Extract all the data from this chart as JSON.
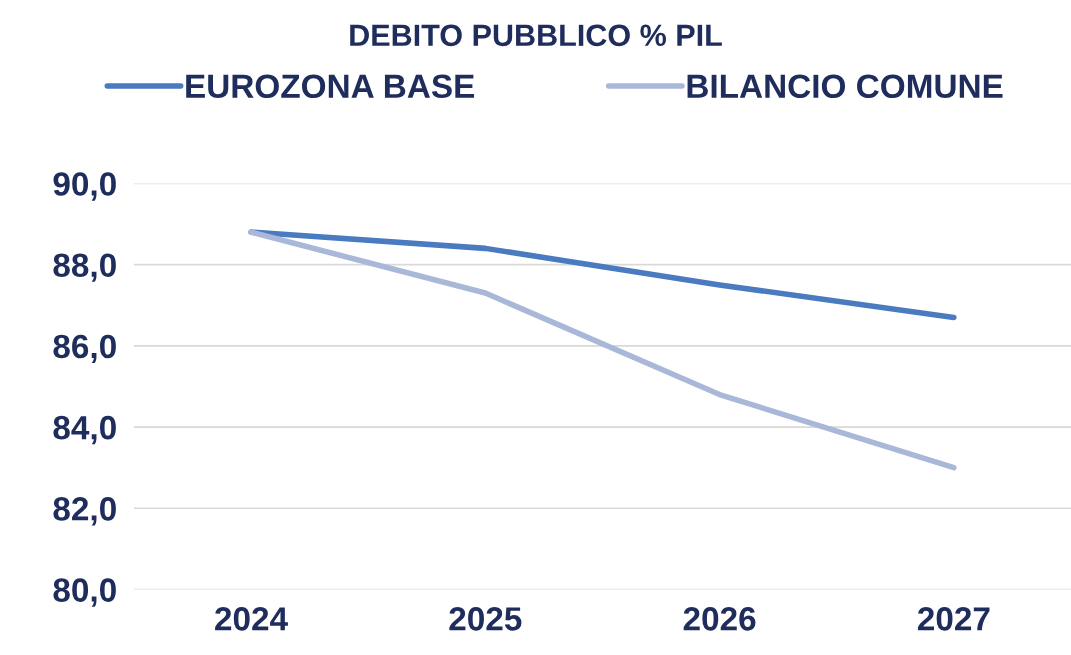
{
  "chart_data": {
    "type": "line",
    "title": "DEBITO PUBBLICO % PIL",
    "categories": [
      "2024",
      "2025",
      "2026",
      "2027"
    ],
    "series": [
      {
        "name": "EUROZONA BASE",
        "color": "#4a7abf",
        "values": [
          88.8,
          88.4,
          87.5,
          86.7
        ]
      },
      {
        "name": "BILANCIO COMUNE",
        "color": "#a9b8d8",
        "values": [
          88.8,
          87.3,
          84.8,
          83.0
        ]
      }
    ],
    "ylim": [
      80,
      90
    ],
    "yticks": [
      {
        "value": 80,
        "label": "80,0"
      },
      {
        "value": 82,
        "label": "82,0"
      },
      {
        "value": 84,
        "label": "84,0"
      },
      {
        "value": 86,
        "label": "86,0"
      },
      {
        "value": 88,
        "label": "88,0"
      },
      {
        "value": 90,
        "label": "90,0"
      }
    ],
    "grid": "y",
    "legend": "top",
    "marker": "none",
    "line_style": "solid"
  }
}
